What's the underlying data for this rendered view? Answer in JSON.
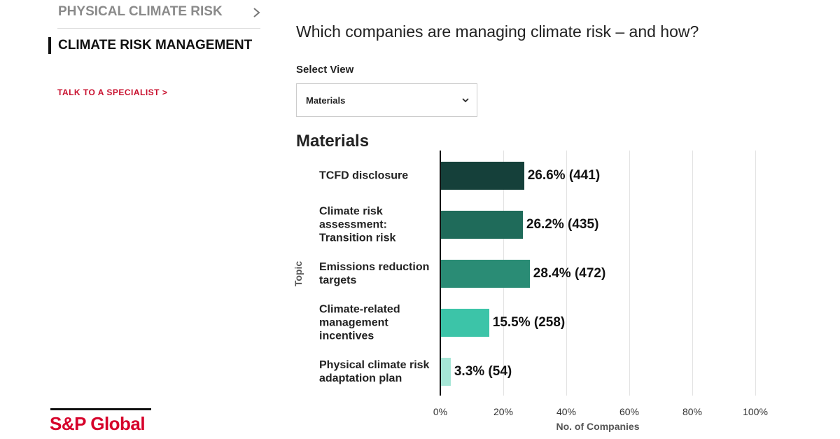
{
  "nav": {
    "items": [
      "PHYSICAL CLIMATE RISK",
      "CLIMATE RISK MANAGEMENT"
    ],
    "cta": "TALK TO A SPECIALIST >"
  },
  "brand": "S&P Global",
  "question": "Which companies are managing climate risk – and how?",
  "select": {
    "label": "Select View",
    "value": "Materials"
  },
  "chart_data": {
    "type": "bar",
    "orientation": "horizontal",
    "title": "Materials",
    "x_label": "No. of Companies",
    "y_label": "Topic",
    "categories": [
      "TCFD disclosure",
      "Climate risk assessment: Transition risk",
      "Emissions reduction targets",
      "Climate-related management incentives",
      "Physical climate risk adaptation plan"
    ],
    "values": [
      26.6,
      26.2,
      28.4,
      15.5,
      3.3
    ],
    "value_labels": [
      "26.6% (441)",
      "26.2% (435)",
      "28.4% (472)",
      "15.5% (258)",
      "3.3% (54)"
    ],
    "colors": [
      "#15403a",
      "#1f6b5a",
      "#2a8c75",
      "#3cc4a8",
      "#a6e6d6"
    ],
    "xlim": [
      0,
      100
    ],
    "xticks": [
      {
        "value": 0,
        "label": "0%"
      },
      {
        "value": 20,
        "label": "20%"
      },
      {
        "value": 40,
        "label": "40%"
      },
      {
        "value": 60,
        "label": "60%"
      },
      {
        "value": 80,
        "label": "80%"
      },
      {
        "value": 100,
        "label": "100%"
      }
    ],
    "grid": true
  }
}
